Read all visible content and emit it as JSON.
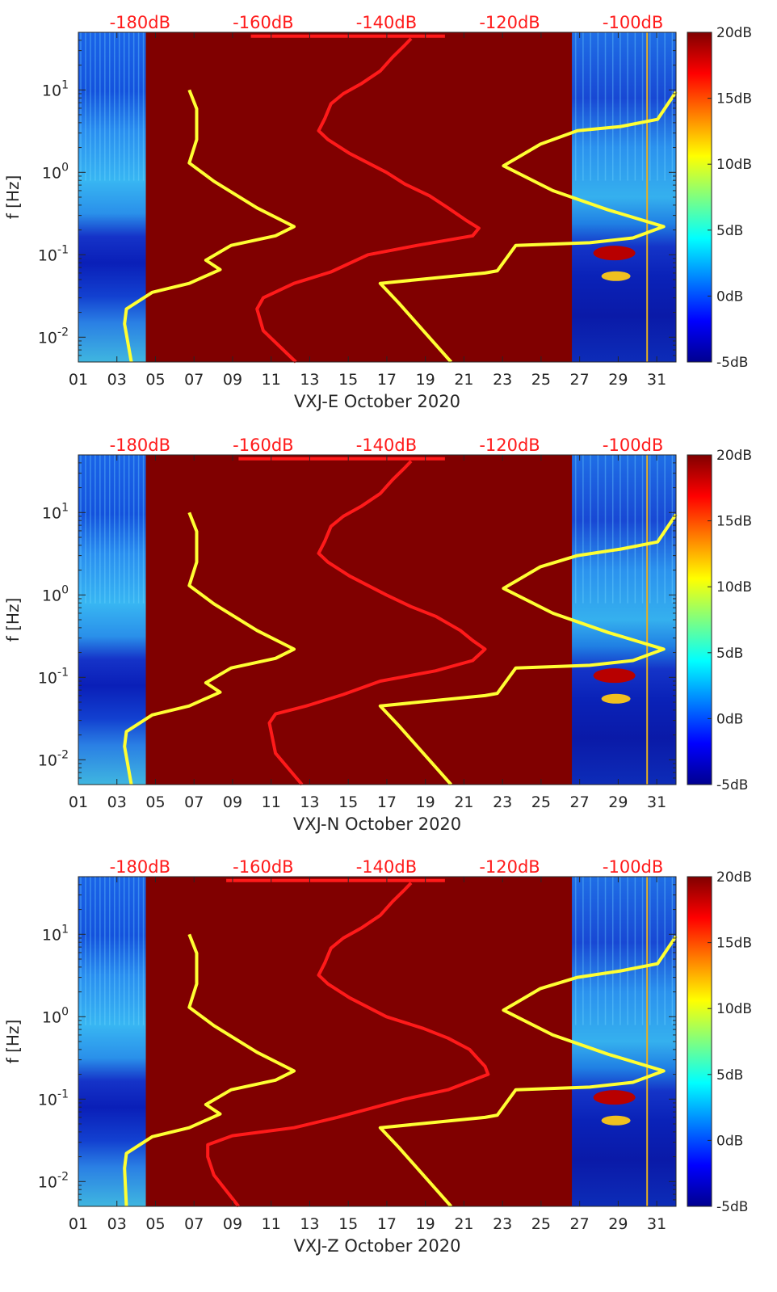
{
  "chart_data": [
    {
      "type": "heatmap",
      "title": "",
      "xlabel": "VXJ-E October 2020",
      "ylabel": "f [Hz]",
      "x_ticks": [
        "01",
        "03",
        "05",
        "07",
        "09",
        "11",
        "13",
        "15",
        "17",
        "19",
        "21",
        "23",
        "25",
        "27",
        "29",
        "31"
      ],
      "x_range_days": [
        1,
        32
      ],
      "y_scale": "log",
      "y_ticks": [
        "10-2",
        "10-1",
        "100",
        "101"
      ],
      "y_range_hz": [
        0.005,
        50
      ],
      "top_ticks": [
        "-180dB",
        "-160dB",
        "-140dB",
        "-120dB",
        "-100dB"
      ],
      "top_range_db": [
        -190,
        -93
      ],
      "colorbar_ticks": [
        "20dB",
        "15dB",
        "10dB",
        "5dB",
        "0dB",
        "-5dB"
      ],
      "colorbar_range_db": [
        -5,
        20
      ],
      "spectrogram_data_days": [
        [
          1,
          4.5
        ],
        [
          26.6,
          32
        ]
      ],
      "series": [
        {
          "color": "#ffff33",
          "points": [
            [
              -181.4,
              0.005
            ],
            [
              -182.5,
              0.0145
            ],
            [
              -182.2,
              0.022
            ],
            [
              -178,
              0.035
            ],
            [
              -172,
              0.045
            ],
            [
              -167,
              0.066
            ],
            [
              -169.3,
              0.086
            ],
            [
              -165.2,
              0.13
            ],
            [
              -158,
              0.17
            ],
            [
              -155,
              0.22
            ],
            [
              -161,
              0.37
            ],
            [
              -168,
              0.78
            ],
            [
              -172,
              1.3
            ],
            [
              -170.8,
              2.5
            ],
            [
              -170.8,
              5.9
            ],
            [
              -172,
              10
            ]
          ]
        },
        {
          "color": "#ff1a1a",
          "points": [
            [
              -154.7,
              0.005
            ],
            [
              -160,
              0.012
            ],
            [
              -161,
              0.022
            ],
            [
              -160,
              0.03
            ],
            [
              -155,
              0.045
            ],
            [
              -149,
              0.062
            ],
            [
              -143,
              0.1
            ],
            [
              -135,
              0.13
            ],
            [
              -126,
              0.17
            ],
            [
              -125,
              0.21
            ],
            [
              -127,
              0.26
            ],
            [
              -130,
              0.37
            ],
            [
              -133,
              0.52
            ],
            [
              -137,
              0.72
            ],
            [
              -140,
              1.0
            ],
            [
              -146,
              1.7
            ],
            [
              -149.5,
              2.5
            ],
            [
              -151,
              3.2
            ],
            [
              -150,
              4.5
            ],
            [
              -149,
              6.8
            ],
            [
              -147,
              9.0
            ],
            [
              -144,
              12
            ],
            [
              -141,
              17
            ],
            [
              -139,
              25
            ],
            [
              -137,
              35
            ],
            [
              -136,
              42
            ]
          ]
        },
        {
          "color": "#ff1a1a",
          "points": [
            [
              -162,
              45
            ],
            [
              -130.5,
              45
            ]
          ]
        },
        {
          "color": "#ffff33",
          "points": [
            [
              -129.5,
              0.005
            ],
            [
              -138,
              0.026
            ],
            [
              -141,
              0.045
            ],
            [
              -124,
              0.06
            ],
            [
              -122,
              0.064
            ],
            [
              -119,
              0.13
            ],
            [
              -107,
              0.14
            ],
            [
              -100,
              0.16
            ],
            [
              -95,
              0.22
            ],
            [
              -104,
              0.35
            ],
            [
              -113,
              0.6
            ],
            [
              -121,
              1.2
            ],
            [
              -115,
              2.2
            ],
            [
              -109,
              3.2
            ],
            [
              -102,
              3.6
            ],
            [
              -96,
              4.4
            ],
            [
              -93,
              9.5
            ]
          ]
        }
      ]
    },
    {
      "type": "heatmap",
      "title": "",
      "xlabel": "VXJ-N October 2020",
      "ylabel": "f [Hz]",
      "x_ticks": [
        "01",
        "03",
        "05",
        "07",
        "09",
        "11",
        "13",
        "15",
        "17",
        "19",
        "21",
        "23",
        "25",
        "27",
        "29",
        "31"
      ],
      "x_range_days": [
        1,
        32
      ],
      "y_scale": "log",
      "y_ticks": [
        "10-2",
        "10-1",
        "100",
        "101"
      ],
      "y_range_hz": [
        0.005,
        50
      ],
      "top_ticks": [
        "-180dB",
        "-160dB",
        "-140dB",
        "-120dB",
        "-100dB"
      ],
      "top_range_db": [
        -190,
        -93
      ],
      "colorbar_ticks": [
        "20dB",
        "15dB",
        "10dB",
        "5dB",
        "0dB",
        "-5dB"
      ],
      "colorbar_range_db": [
        -5,
        20
      ],
      "spectrogram_data_days": [
        [
          1,
          4.5
        ],
        [
          26.6,
          32
        ]
      ],
      "series": [
        {
          "color": "#ffff33",
          "points": [
            [
              -181.4,
              0.005
            ],
            [
              -182.5,
              0.0145
            ],
            [
              -182.2,
              0.022
            ],
            [
              -178,
              0.035
            ],
            [
              -172,
              0.045
            ],
            [
              -167,
              0.066
            ],
            [
              -169.3,
              0.086
            ],
            [
              -165.2,
              0.13
            ],
            [
              -158,
              0.17
            ],
            [
              -155,
              0.22
            ],
            [
              -161,
              0.37
            ],
            [
              -168,
              0.78
            ],
            [
              -172,
              1.3
            ],
            [
              -170.8,
              2.5
            ],
            [
              -170.8,
              5.9
            ],
            [
              -172,
              10
            ]
          ]
        },
        {
          "color": "#ff1a1a",
          "points": [
            [
              -153.7,
              0.005
            ],
            [
              -158,
              0.012
            ],
            [
              -159,
              0.028
            ],
            [
              -158,
              0.036
            ],
            [
              -153,
              0.045
            ],
            [
              -147,
              0.062
            ],
            [
              -141,
              0.09
            ],
            [
              -132,
              0.12
            ],
            [
              -126,
              0.16
            ],
            [
              -124,
              0.22
            ],
            [
              -126,
              0.28
            ],
            [
              -128,
              0.37
            ],
            [
              -132,
              0.55
            ],
            [
              -136,
              0.72
            ],
            [
              -140,
              1.0
            ],
            [
              -146,
              1.7
            ],
            [
              -149.5,
              2.5
            ],
            [
              -151,
              3.2
            ],
            [
              -150,
              4.5
            ],
            [
              -149,
              6.8
            ],
            [
              -147,
              9.0
            ],
            [
              -144,
              12
            ],
            [
              -141,
              17
            ],
            [
              -139,
              25
            ],
            [
              -137,
              35
            ],
            [
              -136,
              42
            ]
          ]
        },
        {
          "color": "#ff1a1a",
          "points": [
            [
              -164,
              45
            ],
            [
              -130.5,
              45
            ]
          ]
        },
        {
          "color": "#ffff33",
          "points": [
            [
              -129.5,
              0.005
            ],
            [
              -138,
              0.026
            ],
            [
              -141,
              0.045
            ],
            [
              -124,
              0.06
            ],
            [
              -122,
              0.064
            ],
            [
              -119,
              0.13
            ],
            [
              -107,
              0.14
            ],
            [
              -100,
              0.16
            ],
            [
              -95,
              0.22
            ],
            [
              -104,
              0.35
            ],
            [
              -113,
              0.6
            ],
            [
              -121,
              1.2
            ],
            [
              -115,
              2.2
            ],
            [
              -109,
              3.0
            ],
            [
              -102,
              3.6
            ],
            [
              -96,
              4.4
            ],
            [
              -93,
              9.5
            ]
          ]
        }
      ]
    },
    {
      "type": "heatmap",
      "title": "",
      "xlabel": "VXJ-Z October 2020",
      "ylabel": "f [Hz]",
      "x_ticks": [
        "01",
        "03",
        "05",
        "07",
        "09",
        "11",
        "13",
        "15",
        "17",
        "19",
        "21",
        "23",
        "25",
        "27",
        "29",
        "31"
      ],
      "x_range_days": [
        1,
        32
      ],
      "y_scale": "log",
      "y_ticks": [
        "10-2",
        "10-1",
        "100",
        "101"
      ],
      "y_range_hz": [
        0.005,
        50
      ],
      "top_ticks": [
        "-180dB",
        "-160dB",
        "-140dB",
        "-120dB",
        "-100dB"
      ],
      "top_range_db": [
        -190,
        -93
      ],
      "colorbar_ticks": [
        "20dB",
        "15dB",
        "10dB",
        "5dB",
        "0dB",
        "-5dB"
      ],
      "colorbar_range_db": [
        -5,
        20
      ],
      "spectrogram_data_days": [
        [
          1,
          4.5
        ],
        [
          26.6,
          32
        ]
      ],
      "series": [
        {
          "color": "#ffff33",
          "points": [
            [
              -182.2,
              0.005
            ],
            [
              -182.5,
              0.0145
            ],
            [
              -182.2,
              0.022
            ],
            [
              -178,
              0.035
            ],
            [
              -172,
              0.045
            ],
            [
              -167,
              0.066
            ],
            [
              -169.3,
              0.086
            ],
            [
              -165.2,
              0.13
            ],
            [
              -158,
              0.17
            ],
            [
              -155,
              0.22
            ],
            [
              -161,
              0.37
            ],
            [
              -168,
              0.78
            ],
            [
              -172,
              1.3
            ],
            [
              -170.8,
              2.5
            ],
            [
              -170.8,
              5.9
            ],
            [
              -172,
              10
            ]
          ]
        },
        {
          "color": "#ff1a1a",
          "points": [
            [
              -164,
              0.005
            ],
            [
              -168,
              0.012
            ],
            [
              -169,
              0.02
            ],
            [
              -169,
              0.028
            ],
            [
              -165,
              0.036
            ],
            [
              -155,
              0.045
            ],
            [
              -148,
              0.06
            ],
            [
              -137,
              0.1
            ],
            [
              -130,
              0.13
            ],
            [
              -123.5,
              0.2
            ],
            [
              -124,
              0.25
            ],
            [
              -125,
              0.3
            ],
            [
              -126.5,
              0.4
            ],
            [
              -130,
              0.55
            ],
            [
              -134,
              0.72
            ],
            [
              -140,
              1.0
            ],
            [
              -146,
              1.7
            ],
            [
              -149.5,
              2.5
            ],
            [
              -151,
              3.2
            ],
            [
              -150,
              4.5
            ],
            [
              -149,
              6.8
            ],
            [
              -147,
              9.0
            ],
            [
              -144,
              12
            ],
            [
              -141,
              17
            ],
            [
              -139,
              25
            ],
            [
              -137,
              35
            ],
            [
              -136,
              42
            ]
          ]
        },
        {
          "color": "#ff1a1a",
          "points": [
            [
              -166,
              45
            ],
            [
              -130.5,
              45
            ]
          ]
        },
        {
          "color": "#ffff33",
          "points": [
            [
              -129.5,
              0.005
            ],
            [
              -138,
              0.026
            ],
            [
              -141,
              0.045
            ],
            [
              -124,
              0.06
            ],
            [
              -122,
              0.064
            ],
            [
              -119,
              0.13
            ],
            [
              -107,
              0.14
            ],
            [
              -100,
              0.16
            ],
            [
              -95,
              0.22
            ],
            [
              -104,
              0.35
            ],
            [
              -113,
              0.6
            ],
            [
              -121,
              1.2
            ],
            [
              -115,
              2.2
            ],
            [
              -109,
              3.0
            ],
            [
              -102,
              3.6
            ],
            [
              -96,
              4.4
            ],
            [
              -93,
              9.5
            ]
          ]
        }
      ]
    }
  ]
}
